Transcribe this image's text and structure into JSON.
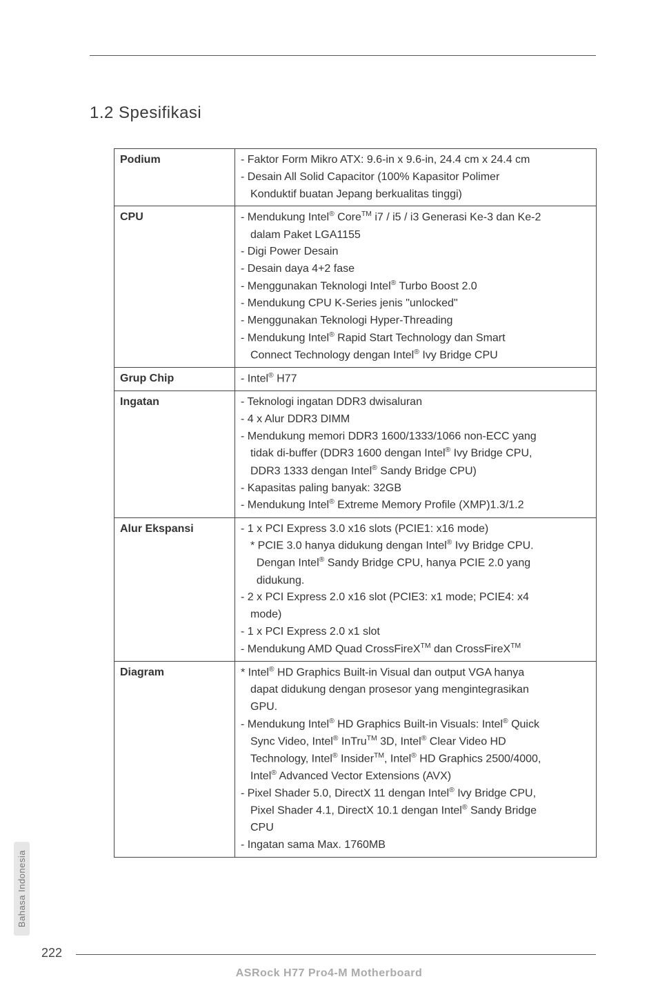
{
  "heading": "1.2  Spesifikasi",
  "sideTab": "Bahasa Indonesia",
  "pageNumber": "222",
  "footer": "ASRock  H77 Pro4-M  Motherboard",
  "rows": {
    "podium": {
      "label": "Podium",
      "l1": "- Faktor Form Mikro ATX: 9.6-in x 9.6-in, 24.4 cm x 24.4 cm",
      "l2": "- Desain All Solid Capacitor (100% Kapasitor Polimer",
      "l3": "Konduktif buatan Jepang berkualitas tinggi)"
    },
    "cpu": {
      "label": "CPU",
      "l2": "dalam Paket LGA1155",
      "l3": "- Digi Power Desain",
      "l4": "- Desain daya 4+2 fase",
      "l6": "- Mendukung CPU K-Series jenis \"unlocked\"",
      "l7": "- Menggunakan Teknologi Hyper-Threading"
    },
    "grup": {
      "label": "Grup Chip"
    },
    "ingatan": {
      "label": "Ingatan",
      "l1": "- Teknologi ingatan DDR3 dwisaluran",
      "l2": "- 4 x Alur DDR3 DIMM",
      "l3": "- Mendukung memori DDR3 1600/1333/1066 non-ECC yang",
      "l6": "- Kapasitas paling banyak: 32GB"
    },
    "alur": {
      "label": "Alur Ekspansi",
      "l1": "- 1 x PCI Express 3.0 x16 slots (PCIE1: x16 mode)",
      "l4": "didukung.",
      "l5": "- 2 x PCI Express 2.0 x16 slot (PCIE3: x1 mode; PCIE4: x4",
      "l6": "mode)",
      "l7": "- 1 x PCI Express 2.0 x1 slot"
    },
    "diagram": {
      "label": "Diagram",
      "l2": "dapat didukung dengan prosesor yang mengintegrasikan",
      "l3": "GPU.",
      "l11": "CPU",
      "l12": "- Ingatan sama Max. 1760MB"
    }
  }
}
